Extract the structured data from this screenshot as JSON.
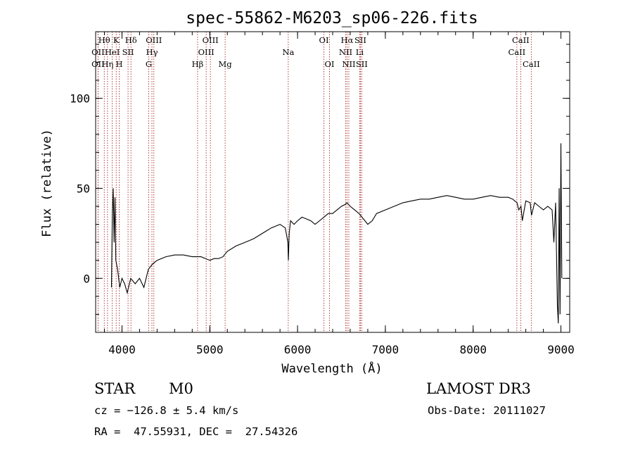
{
  "chart_data": {
    "type": "line",
    "title": "spec-55862-M6203_sp06-226.fits",
    "xlabel": "Wavelength (Å)",
    "ylabel": "Flux (relative)",
    "xlim": [
      3700,
      9100
    ],
    "ylim": [
      -30,
      137
    ],
    "x_ticks": [
      4000,
      5000,
      6000,
      7000,
      8000,
      9000
    ],
    "y_ticks": [
      0,
      50,
      100
    ],
    "x_minor_step": 200,
    "y_minor_step": 10,
    "line_color": "#000000",
    "marker_color": "#a01010",
    "spectrum": {
      "x": [
        3880,
        3890,
        3900,
        3910,
        3920,
        3930,
        3950,
        3975,
        4000,
        4030,
        4060,
        4100,
        4150,
        4200,
        4250,
        4300,
        4350,
        4400,
        4500,
        4600,
        4700,
        4800,
        4900,
        5000,
        5050,
        5100,
        5150,
        5200,
        5300,
        5400,
        5500,
        5600,
        5700,
        5800,
        5860,
        5890,
        5895,
        5905,
        5920,
        5960,
        6000,
        6050,
        6100,
        6150,
        6200,
        6250,
        6300,
        6350,
        6400,
        6450,
        6500,
        6540,
        6563,
        6600,
        6650,
        6700,
        6750,
        6800,
        6850,
        6900,
        7000,
        7100,
        7200,
        7300,
        7400,
        7500,
        7600,
        7700,
        7800,
        7900,
        8000,
        8100,
        8200,
        8300,
        8400,
        8450,
        8500,
        8520,
        8545,
        8560,
        8600,
        8650,
        8665,
        8700,
        8750,
        8800,
        8850,
        8900,
        8920,
        8940,
        8960,
        8970,
        8980,
        8990,
        9000,
        9010
      ],
      "y": [
        -5,
        35,
        50,
        20,
        45,
        10,
        5,
        -5,
        0,
        -3,
        -8,
        0,
        -3,
        0,
        -5,
        5,
        8,
        10,
        12,
        13,
        13,
        12,
        12,
        10,
        11,
        11,
        12,
        15,
        18,
        20,
        22,
        25,
        28,
        30,
        28,
        20,
        10,
        25,
        32,
        30,
        32,
        34,
        33,
        32,
        30,
        32,
        34,
        36,
        36,
        38,
        40,
        41,
        42,
        40,
        38,
        36,
        33,
        30,
        32,
        36,
        38,
        40,
        42,
        43,
        44,
        44,
        45,
        46,
        45,
        44,
        44,
        45,
        46,
        45,
        45,
        44,
        42,
        38,
        40,
        32,
        43,
        42,
        35,
        42,
        40,
        38,
        40,
        38,
        20,
        42,
        -15,
        -25,
        50,
        -20,
        75,
        0
      ]
    },
    "line_markers": [
      {
        "label": "Hθ",
        "x": 3798,
        "row": 1
      },
      {
        "label": "OII",
        "x": 3727,
        "row": 2
      },
      {
        "label": "OII",
        "x": 3727,
        "row": 3
      },
      {
        "label": "Hη",
        "x": 3835,
        "row": 3
      },
      {
        "label": "K",
        "x": 3934,
        "row": 1
      },
      {
        "label": "HeI",
        "x": 3889,
        "row": 2
      },
      {
        "label": "H",
        "x": 3969,
        "row": 3
      },
      {
        "label": "Hδ",
        "x": 4102,
        "row": 1
      },
      {
        "label": "SII",
        "x": 4069,
        "row": 2
      },
      {
        "label": "OIII",
        "x": 4363,
        "row": 1
      },
      {
        "label": "Hγ",
        "x": 4341,
        "row": 2
      },
      {
        "label": "G",
        "x": 4305,
        "row": 3
      },
      {
        "label": "OIII",
        "x": 5007,
        "row": 1
      },
      {
        "label": "OIII",
        "x": 4959,
        "row": 2
      },
      {
        "label": "Hβ",
        "x": 4861,
        "row": 3
      },
      {
        "label": "Mg",
        "x": 5175,
        "row": 3
      },
      {
        "label": "Na",
        "x": 5894,
        "row": 2
      },
      {
        "label": "OI",
        "x": 6300,
        "row": 1
      },
      {
        "label": "OI",
        "x": 6364,
        "row": 3
      },
      {
        "label": "Hα",
        "x": 6563,
        "row": 1
      },
      {
        "label": "SII",
        "x": 6716,
        "row": 1
      },
      {
        "label": "NII",
        "x": 6548,
        "row": 2
      },
      {
        "label": "Li",
        "x": 6708,
        "row": 2
      },
      {
        "label": "NII",
        "x": 6584,
        "row": 3
      },
      {
        "label": "SII",
        "x": 6731,
        "row": 3
      },
      {
        "label": "CaII",
        "x": 8542,
        "row": 1
      },
      {
        "label": "CaII",
        "x": 8498,
        "row": 2
      },
      {
        "label": "CaII",
        "x": 8662,
        "row": 3
      }
    ]
  },
  "info": {
    "object_class": "STAR",
    "subclass": "M0",
    "survey": "LAMOST DR3",
    "redshift": "cz = −126.8 ± 5.4 km/s",
    "obs_date": "Obs-Date: 20111027",
    "coords": "RA =  47.55931, DEC =  27.54326"
  }
}
